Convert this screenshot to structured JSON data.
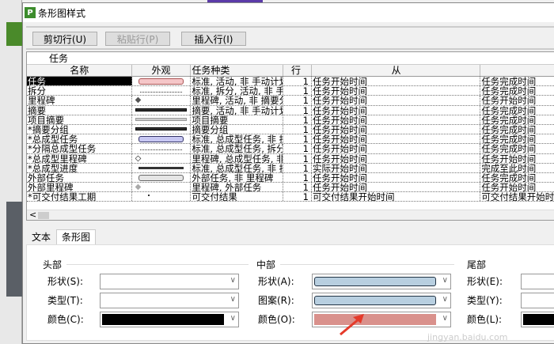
{
  "window": {
    "title": "条形图样式",
    "logo": "P"
  },
  "toolbar": {
    "cut": "剪切行(U)",
    "paste": "粘贴行(P)",
    "insert": "插入行(I)"
  },
  "grid": {
    "section": "任务",
    "columns": [
      "名称",
      "外观",
      "任务种类",
      "行",
      "从",
      ""
    ],
    "rows": [
      {
        "name": "任务",
        "look": "pink-bar",
        "type": "标准, 活动, 非 手动计划",
        "row": "1",
        "from": "任务开始时间",
        "to": "任务完成时间"
      },
      {
        "name": "拆分",
        "look": "dotted",
        "type": "标准, 拆分, 活动, 非 手",
        "row": "1",
        "from": "任务开始时间",
        "to": "任务完成时间"
      },
      {
        "name": "里程碑",
        "look": "diamond-dark",
        "type": "里程碑, 活动, 非 摘要分",
        "row": "1",
        "from": "任务开始时间",
        "to": "任务开始时间"
      },
      {
        "name": "摘要",
        "look": "summary-dark",
        "type": "摘要, 活动, 非 手动计划",
        "row": "1",
        "from": "任务开始时间",
        "to": "任务完成时间"
      },
      {
        "name": "项目摘要",
        "look": "summary-light",
        "type": "项目摘要",
        "row": "1",
        "from": "任务开始时间",
        "to": "任务完成时间"
      },
      {
        "name": "*摘要分组",
        "look": "summary-dark",
        "type": "摘要分组",
        "row": "1",
        "from": "任务开始时间",
        "to": "任务完成时间"
      },
      {
        "name": "*总成型任务",
        "look": "blue-bar",
        "type": "标准, 总成型任务, 非 拆",
        "row": "1",
        "from": "任务开始时间",
        "to": "任务完成时间"
      },
      {
        "name": "*分隔总成型任务",
        "look": "dotted",
        "type": "标准, 总成型任务, 拆分",
        "row": "1",
        "from": "任务开始时间",
        "to": "任务完成时间"
      },
      {
        "name": "*总成型里程碑",
        "look": "diamond-open",
        "type": "里程碑, 总成型任务, 非",
        "row": "1",
        "from": "任务开始时间",
        "to": "任务开始时间"
      },
      {
        "name": "*总成型进度",
        "look": "line-dark",
        "type": "标准, 总成型任务, 非 拆",
        "row": "1",
        "from": "实际开始时间",
        "to": "完成至此时间"
      },
      {
        "name": "外部任务",
        "look": "gray-bar",
        "type": "外部任务, 非 里程碑",
        "row": "1",
        "from": "任务开始时间",
        "to": "任务完成时间"
      },
      {
        "name": "外部里程碑",
        "look": "diamond-gray",
        "type": "里程碑, 外部任务",
        "row": "1",
        "from": "任务开始时间",
        "to": "任务开始时间"
      },
      {
        "name": "*可交付结果工期",
        "look": "dot",
        "type": "可交付结果",
        "row": "1",
        "from": "可交付结果开始时间",
        "to": "可交付结果开始时"
      }
    ]
  },
  "tabs": [
    "文本",
    "条形图"
  ],
  "panel": {
    "head": {
      "title": "头部",
      "shape": "形状(S):",
      "type": "类型(T):",
      "color": "颜色(C):",
      "color_value": "#000000"
    },
    "middle": {
      "title": "中部",
      "shape": "形状(A):",
      "pattern": "图案(R):",
      "color": "颜色(O):",
      "color_value": "#d9918c",
      "bar_color": "#b8cfe0"
    },
    "tail": {
      "title": "尾部",
      "shape": "形状(E):",
      "type": "类型(Y):",
      "color": "颜色(L):",
      "color_value": "#000000"
    }
  },
  "watermark": "jingyan.baidu.com"
}
